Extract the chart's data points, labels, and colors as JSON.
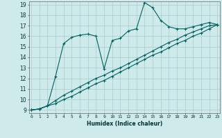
{
  "xlabel": "Humidex (Indice chaleur)",
  "ylabel": "",
  "bg_color": "#ceeaea",
  "grid_color": "#aed0d0",
  "line_color": "#006060",
  "xmin": 0,
  "xmax": 23,
  "ymin": 9,
  "ymax": 19,
  "x_ticks": [
    0,
    1,
    2,
    3,
    4,
    5,
    6,
    7,
    8,
    9,
    10,
    11,
    12,
    13,
    14,
    15,
    16,
    17,
    18,
    19,
    20,
    21,
    22,
    23
  ],
  "y_ticks": [
    9,
    10,
    11,
    12,
    13,
    14,
    15,
    16,
    17,
    18,
    19
  ],
  "line1_x": [
    0,
    1,
    2,
    3,
    4,
    5,
    6,
    7,
    8,
    9,
    10,
    11,
    12,
    13,
    14,
    15,
    16,
    17,
    18,
    19,
    20,
    21,
    22,
    23
  ],
  "line1_y": [
    9.0,
    9.1,
    9.4,
    12.2,
    15.3,
    15.9,
    16.1,
    16.2,
    16.0,
    12.9,
    15.6,
    15.8,
    16.5,
    16.7,
    19.2,
    18.7,
    17.5,
    16.9,
    16.7,
    16.7,
    16.9,
    17.1,
    17.3,
    17.1
  ],
  "line2_x": [
    0,
    1,
    2,
    3,
    4,
    5,
    6,
    7,
    8,
    9,
    10,
    11,
    12,
    13,
    14,
    15,
    16,
    17,
    18,
    19,
    20,
    21,
    22,
    23
  ],
  "line2_y": [
    9.0,
    9.1,
    9.4,
    9.9,
    10.4,
    10.8,
    11.2,
    11.6,
    12.0,
    12.3,
    12.7,
    13.0,
    13.4,
    13.8,
    14.2,
    14.6,
    15.0,
    15.4,
    15.7,
    16.1,
    16.4,
    16.7,
    17.0,
    17.1
  ],
  "line3_x": [
    0,
    1,
    2,
    3,
    4,
    5,
    6,
    7,
    8,
    9,
    10,
    11,
    12,
    13,
    14,
    15,
    16,
    17,
    18,
    19,
    20,
    21,
    22,
    23
  ],
  "line3_y": [
    9.0,
    9.1,
    9.4,
    9.6,
    10.0,
    10.3,
    10.7,
    11.1,
    11.5,
    11.8,
    12.2,
    12.6,
    13.0,
    13.4,
    13.8,
    14.2,
    14.5,
    14.9,
    15.3,
    15.6,
    16.0,
    16.3,
    16.7,
    17.1
  ]
}
